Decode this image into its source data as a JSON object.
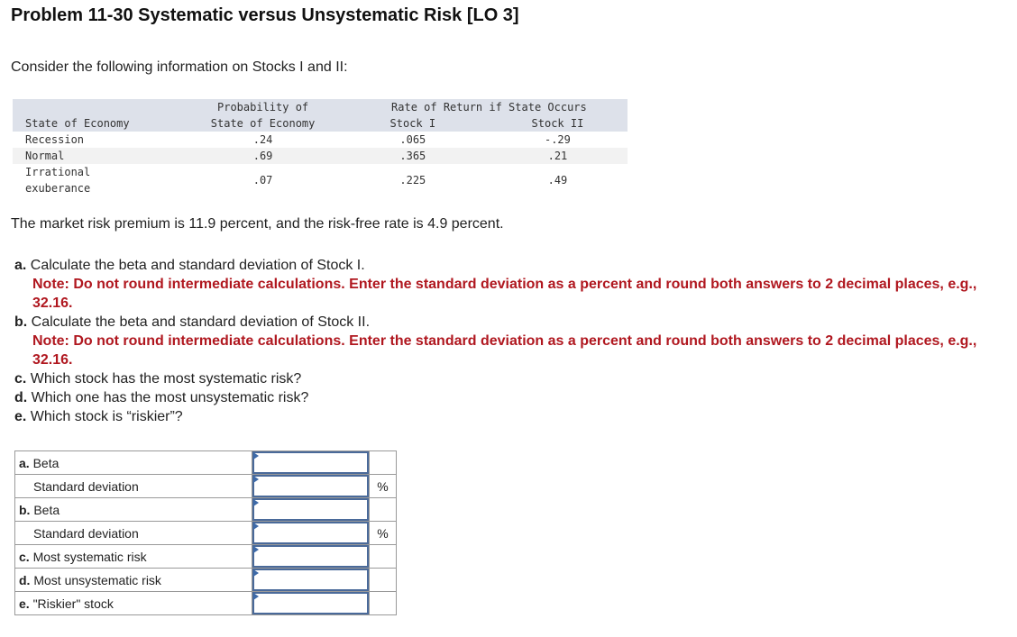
{
  "title": "Problem 11-30 Systematic versus Unsystematic Risk [LO 3]",
  "intro": "Consider the following information on Stocks I and II:",
  "table": {
    "header_top": [
      "",
      "Probability of",
      "Rate of Return if State Occurs"
    ],
    "header": [
      "State of Economy",
      "State of Economy",
      "Stock I",
      "Stock II"
    ],
    "rows": [
      {
        "state": "Recession",
        "prob": ".24",
        "stock1": ".065",
        "stock2": "-.29"
      },
      {
        "state": "Normal",
        "prob": ".69",
        "stock1": ".365",
        "stock2": ".21"
      },
      {
        "state_line1": "Irrational",
        "state_line2": "exuberance",
        "prob": ".07",
        "stock1": ".225",
        "stock2": ".49"
      }
    ]
  },
  "premium": "The market risk premium is 11.9 percent, and the risk-free rate is 4.9 percent.",
  "questions": [
    {
      "letter": "a.",
      "text": " Calculate the beta and standard deviation of Stock I.",
      "note": "Note: Do not round intermediate calculations. Enter the standard deviation as a percent and round both answers to 2 decimal places, e.g., 32.16."
    },
    {
      "letter": "b.",
      "text": " Calculate the beta and standard deviation of Stock II.",
      "note": "Note: Do not round intermediate calculations. Enter the standard deviation as a percent and round both answers to 2 decimal places, e.g., 32.16."
    },
    {
      "letter": "c.",
      "text": " Which stock has the most systematic risk?"
    },
    {
      "letter": "d.",
      "text": " Which one has the most unsystematic risk?"
    },
    {
      "letter": "e.",
      "text": " Which stock is “riskier”?"
    }
  ],
  "answers": [
    {
      "letter": "a.",
      "label": " Beta",
      "unit": ""
    },
    {
      "letter": "",
      "label": "Standard deviation",
      "unit": "%"
    },
    {
      "letter": "b.",
      "label": " Beta",
      "unit": ""
    },
    {
      "letter": "",
      "label": "Standard deviation",
      "unit": "%"
    },
    {
      "letter": "c.",
      "label": " Most systematic risk",
      "unit": ""
    },
    {
      "letter": "d.",
      "label": " Most unsystematic risk",
      "unit": ""
    },
    {
      "letter": "e.",
      "label": " \"Riskier\" stock",
      "unit": ""
    }
  ],
  "colors": {
    "note": "#b0171f",
    "input_border": "#4a6a9a",
    "table_header": "#dde1ea"
  }
}
